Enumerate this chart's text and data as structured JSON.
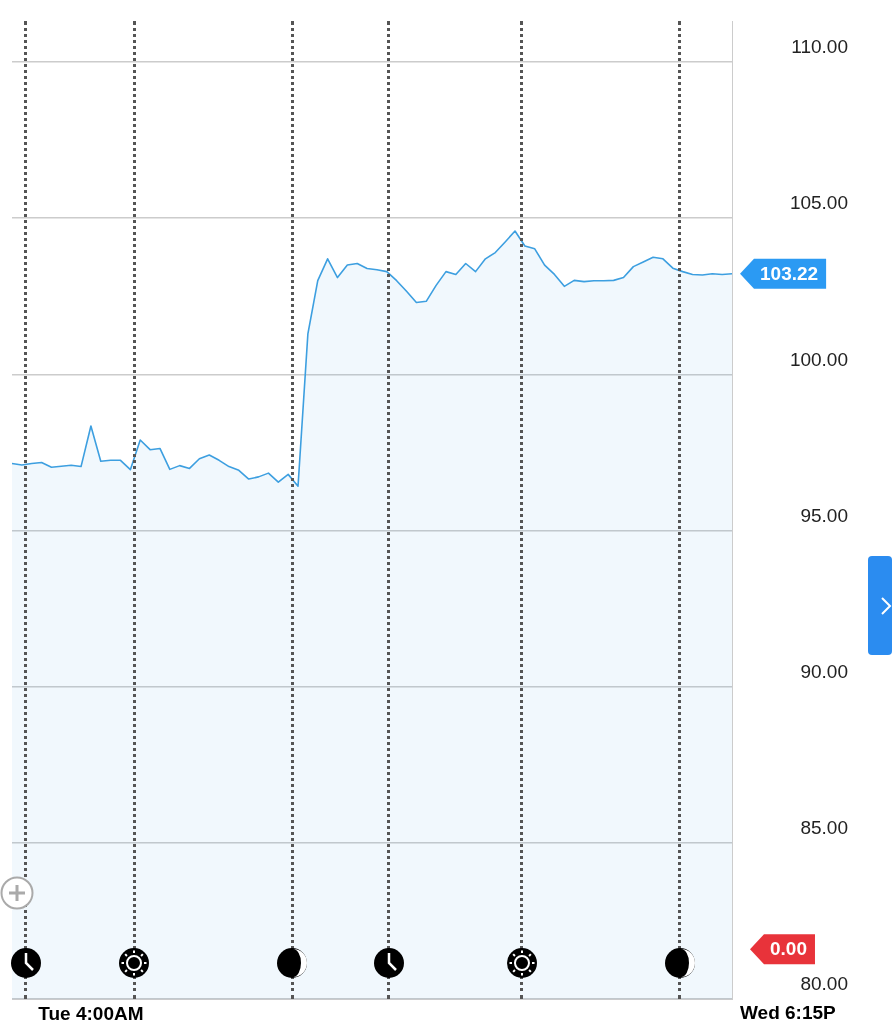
{
  "chart_data": {
    "type": "area",
    "color": "#3d9fe0",
    "categories": [
      null,
      null,
      null,
      null,
      null,
      null,
      null,
      null,
      "Tue 4:00AM",
      null,
      null,
      null,
      null,
      null,
      null,
      null,
      null,
      null,
      null,
      null,
      null,
      null,
      null,
      null,
      null,
      null,
      null,
      null,
      null,
      null,
      null,
      null,
      null,
      null,
      null,
      null,
      null,
      null,
      null,
      null,
      null,
      null,
      null,
      null,
      null,
      null,
      null,
      null,
      null,
      null,
      null,
      null,
      null,
      null,
      null,
      null,
      null,
      null,
      null,
      null,
      null,
      null,
      null,
      null,
      null,
      null,
      null,
      null,
      null,
      null,
      null,
      null,
      null,
      null
    ],
    "values": [
      97.15,
      97.1,
      97.15,
      97.18,
      97.03,
      97.06,
      97.09,
      97.05,
      98.35,
      97.22,
      97.25,
      97.25,
      96.95,
      97.9,
      97.59,
      97.63,
      96.96,
      97.08,
      96.99,
      97.3,
      97.42,
      97.25,
      97.05,
      96.93,
      96.65,
      96.72,
      96.84,
      96.55,
      96.8,
      96.42,
      101.3,
      103.0,
      103.7,
      103.1,
      103.5,
      103.55,
      103.39,
      103.35,
      103.29,
      103.0,
      102.66,
      102.3,
      102.34,
      102.85,
      103.29,
      103.2,
      103.55,
      103.29,
      103.7,
      103.9,
      104.24,
      104.59,
      104.11,
      104.02,
      103.5,
      103.2,
      102.82,
      103.01,
      102.97,
      103.0,
      103.0,
      103.01,
      103.1,
      103.45,
      103.6,
      103.75,
      103.7,
      103.4,
      103.29,
      103.2,
      103.18,
      103.22,
      103.2,
      103.22
    ],
    "ylim": [
      80,
      111.3
    ],
    "yticks": [
      {
        "value": 80,
        "label": "80.00"
      },
      {
        "value": 85,
        "label": "85.00"
      },
      {
        "value": 90,
        "label": "90.00"
      },
      {
        "value": 95,
        "label": "95.00"
      },
      {
        "value": 100,
        "label": "100.00"
      },
      {
        "value": 105,
        "label": "105.00"
      },
      {
        "value": 110,
        "label": "110.00"
      }
    ],
    "grid": "y",
    "legend": false,
    "marker": "none",
    "line_style": "solid",
    "annotations": [
      "103.22",
      "0.00",
      "Wed 6:15P"
    ]
  }
}
